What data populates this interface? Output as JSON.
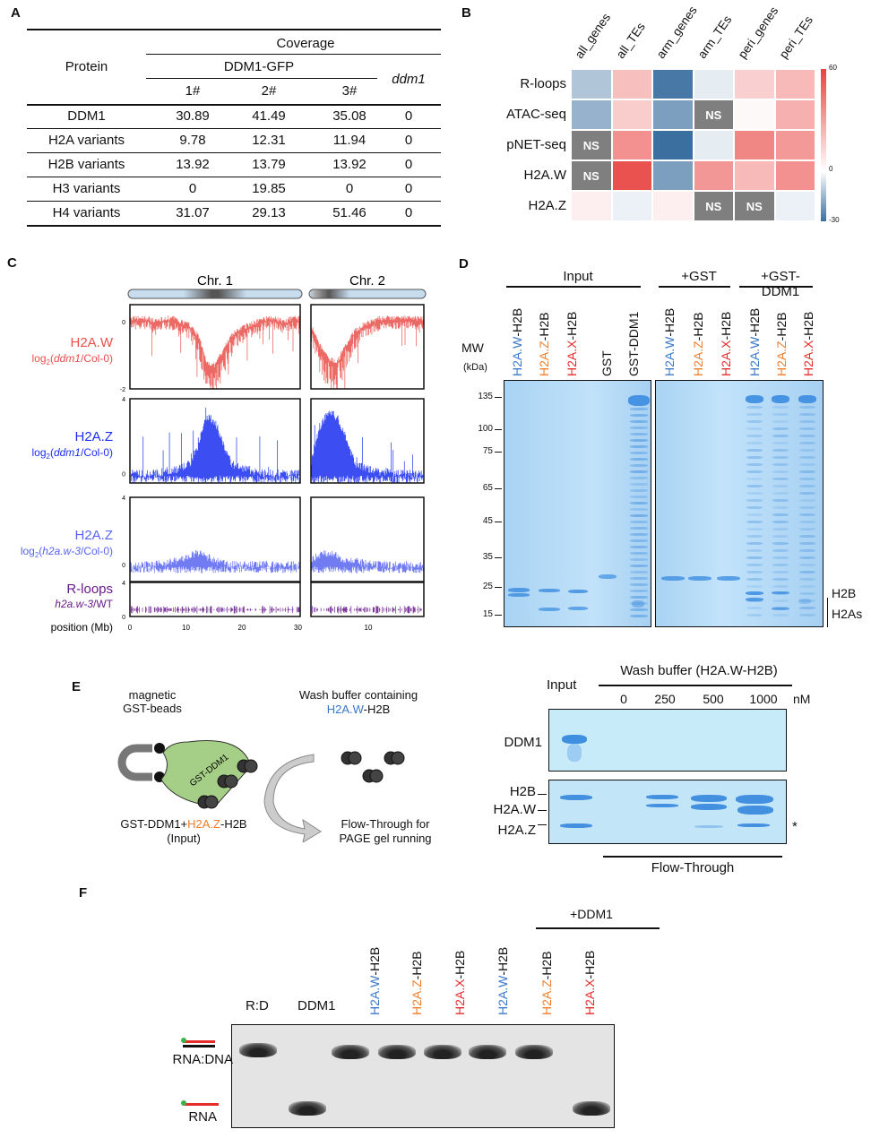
{
  "panels": {
    "A": "A",
    "B": "B",
    "C": "C",
    "D": "D",
    "E": "E",
    "F": "F"
  },
  "panelA": {
    "header_protein": "Protein",
    "header_coverage": "Coverage",
    "header_group": "DDM1-GFP",
    "header_ddm1": "ddm1",
    "reps": [
      "1#",
      "2#",
      "3#"
    ],
    "rows": [
      {
        "protein": "DDM1",
        "v": [
          "30.89",
          "41.49",
          "35.08",
          "0"
        ]
      },
      {
        "protein": "H2A variants",
        "v": [
          "9.78",
          "12.31",
          "11.94",
          "0"
        ]
      },
      {
        "protein": "H2B variants",
        "v": [
          "13.92",
          "13.79",
          "13.92",
          "0"
        ]
      },
      {
        "protein": "H3 variants",
        "v": [
          "0",
          "19.85",
          "0",
          "0"
        ]
      },
      {
        "protein": "H4 variants",
        "v": [
          "31.07",
          "29.13",
          "51.46",
          "0"
        ]
      }
    ]
  },
  "chart_data": [
    {
      "type": "heatmap",
      "panel": "B",
      "columns": [
        "all_genes",
        "all_TEs",
        "arm_genes",
        "arm_TEs",
        "peri_genes",
        "peri_TEs"
      ],
      "rows": [
        "R-loops",
        "ATAC-seq",
        "pNET-seq",
        "H2A.W",
        "H2A.Z"
      ],
      "values": [
        [
          -12,
          20,
          -28,
          -4,
          15,
          22
        ],
        [
          -16,
          16,
          -20,
          null,
          2,
          25
        ],
        [
          null,
          35,
          -30,
          -4,
          38,
          32
        ],
        [
          null,
          55,
          -20,
          33,
          22,
          35
        ],
        [
          5,
          -3,
          5,
          null,
          null,
          -3
        ]
      ],
      "ns_label": "NS",
      "colorbar": {
        "min": -30,
        "max": 60,
        "ticks": [
          "60",
          "0",
          "-30"
        ],
        "low_color": "#3b6fa0",
        "mid_color": "#ffffff",
        "high_color": "#e8423f",
        "ns_color": "#7f7f7f"
      }
    },
    {
      "type": "line",
      "panel": "C",
      "chromosomes": [
        "Chr. 1",
        "Chr. 2"
      ],
      "xlabel": "position (Mb)",
      "x_ticks_chr1": [
        "0",
        "10",
        "20",
        "30"
      ],
      "x_ticks_chr2": [
        "10"
      ],
      "x_range_chr1": [
        0,
        30.4
      ],
      "x_range_chr2": [
        0,
        19.7
      ],
      "tracks": [
        {
          "name": "H2A.W",
          "sub_pre": "log",
          "sub_sub": "2",
          "sub_it": "ddm1",
          "sub_post": "/Col-0",
          "color": "#e8504a",
          "ylim": [
            -2,
            0.5
          ],
          "y_ticks": [
            "0",
            "-2"
          ],
          "profile_chr1": [
            0,
            0,
            0,
            -0.1,
            0,
            0,
            -0.1,
            -0.2,
            -0.5,
            -1.3,
            -1.4,
            -0.9,
            -0.5,
            -0.3,
            -0.2,
            -0.1,
            0,
            0,
            -0.1,
            0,
            0
          ],
          "profile_chr2": [
            -0.2,
            -0.8,
            -1.2,
            -1.3,
            -0.8,
            -0.4,
            -0.2,
            -0.1,
            0,
            0,
            0,
            0,
            0,
            0
          ]
        },
        {
          "name": "H2A.Z",
          "sub_pre": "log",
          "sub_sub": "2",
          "sub_it": "ddm1",
          "sub_post": "/Col-0",
          "color": "#1a2ff0",
          "ylim": [
            -0.5,
            4
          ],
          "y_ticks": [
            "4",
            "0"
          ],
          "profile_chr1": [
            0,
            0,
            0,
            0,
            0.1,
            0.2,
            0.3,
            0.5,
            1.5,
            3,
            2.8,
            1.5,
            0.5,
            0.3,
            0.2,
            0.1,
            0,
            0,
            0,
            0,
            0
          ],
          "profile_chr2": [
            0.5,
            2.5,
            3.3,
            3.0,
            2,
            0.6,
            0.3,
            0.2,
            0.1,
            0.1,
            0,
            0,
            0,
            0
          ]
        },
        {
          "name": "H2A.Z",
          "sub_pre": "log",
          "sub_sub": "2",
          "sub_it": "h2a.w-3",
          "sub_post": "/Col-0",
          "color": "#5865f0",
          "ylim": [
            -1,
            4
          ],
          "y_ticks": [
            "4",
            "0"
          ],
          "profile_chr1": [
            0,
            0,
            0,
            0,
            0.1,
            0.2,
            0.3,
            0.5,
            0.7,
            0.5,
            0.2,
            0.1,
            0,
            0,
            0,
            0,
            0,
            0,
            0,
            0,
            0
          ],
          "profile_chr2": [
            0.3,
            0.6,
            0.7,
            0.5,
            0.3,
            0.2,
            0.1,
            0,
            0,
            0,
            0,
            0,
            0,
            0
          ]
        },
        {
          "name": "R-loops",
          "sub_it": "h2a.w-3",
          "sub_post": "/WT",
          "color": "#6a1a8c",
          "ylim": [
            0,
            4
          ],
          "y_ticks": [
            "4",
            "0"
          ],
          "profile_chr1": [
            0.8,
            0.8,
            0.8,
            0.8,
            0.8,
            0.8,
            0.8,
            0.8,
            0.8,
            0.8,
            0.8,
            0.8,
            0.8,
            0.8,
            0.8,
            0.8,
            0.8,
            0.8,
            0.8,
            0.8,
            0.8
          ],
          "profile_chr2": [
            0.8,
            0.8,
            0.8,
            0.8,
            0.8,
            0.8,
            0.8,
            0.8,
            0.8,
            0.8,
            0.8,
            0.8,
            0.8,
            0.8
          ]
        }
      ]
    }
  ],
  "panelD": {
    "groups": [
      "Input",
      "+GST",
      "+GST-DDM1"
    ],
    "mw_label": "MW",
    "mw_unit": "(kDa)",
    "mw_markers": [
      "135",
      "100",
      "75",
      "65",
      "45",
      "35",
      "25",
      "15"
    ],
    "lanes_left": [
      {
        "pre": "H2A.W",
        "post": "-H2B",
        "c": "W"
      },
      {
        "pre": "H2A.Z",
        "post": "-H2B",
        "c": "Z"
      },
      {
        "pre": "H2A.X",
        "post": "-H2B",
        "c": "X"
      },
      {
        "pre": "",
        "post": "GST",
        "c": ""
      },
      {
        "pre": "",
        "post": "GST-DDM1",
        "c": ""
      }
    ],
    "lanes_right": [
      {
        "pre": "H2A.W",
        "post": "-H2B",
        "c": "W"
      },
      {
        "pre": "H2A.Z",
        "post": "-H2B",
        "c": "Z"
      },
      {
        "pre": "H2A.X",
        "post": "-H2B",
        "c": "X"
      },
      {
        "pre": "H2A.W",
        "post": "-H2B",
        "c": "W"
      },
      {
        "pre": "H2A.Z",
        "post": "-H2B",
        "c": "Z"
      },
      {
        "pre": "H2A.X",
        "post": "-H2B",
        "c": "X"
      }
    ],
    "right_labels": [
      "H2B",
      "H2As"
    ]
  },
  "panelE": {
    "beads_label_1": "magnetic",
    "beads_label_2": "GST-beads",
    "protein_label": "GST-DDM1",
    "wash_label_1": "Wash buffer containing",
    "wash_label_2_pre": "H2A.W",
    "wash_label_2_post": "-H2B",
    "input_label_pre": "GST-DDM1+",
    "input_label_mid": "H2A.Z",
    "input_label_post": "-H2B",
    "input_label_2": "(Input)",
    "flow_label_1": "Flow-Through for",
    "flow_label_2": "PAGE gel running",
    "gel_input": "Input",
    "gel_wash_title": "Wash buffer (H2A.W-H2B)",
    "concentrations": [
      "0",
      "250",
      "500",
      "1000"
    ],
    "conc_unit": "nM",
    "row_ddm1": "DDM1",
    "row_h2b": "H2B",
    "row_h2aw": "H2A.W",
    "row_h2az": "H2A.Z",
    "asterisk": "*",
    "flow_through": "Flow-Through"
  },
  "panelF": {
    "group_label": "+DDM1",
    "lane_rd": "R:D",
    "lane_ddm1": "DDM1",
    "lanes": [
      {
        "pre": "H2A.W",
        "post": "-H2B",
        "c": "W"
      },
      {
        "pre": "H2A.Z",
        "post": "-H2B",
        "c": "Z"
      },
      {
        "pre": "H2A.X",
        "post": "-H2B",
        "c": "X"
      },
      {
        "pre": "H2A.W",
        "post": "-H2B",
        "c": "W"
      },
      {
        "pre": "H2A.Z",
        "post": "-H2B",
        "c": "Z"
      },
      {
        "pre": "H2A.X",
        "post": "-H2B",
        "c": "X"
      }
    ],
    "label_hybrid": "RNA:DNA",
    "label_rna": "RNA"
  }
}
